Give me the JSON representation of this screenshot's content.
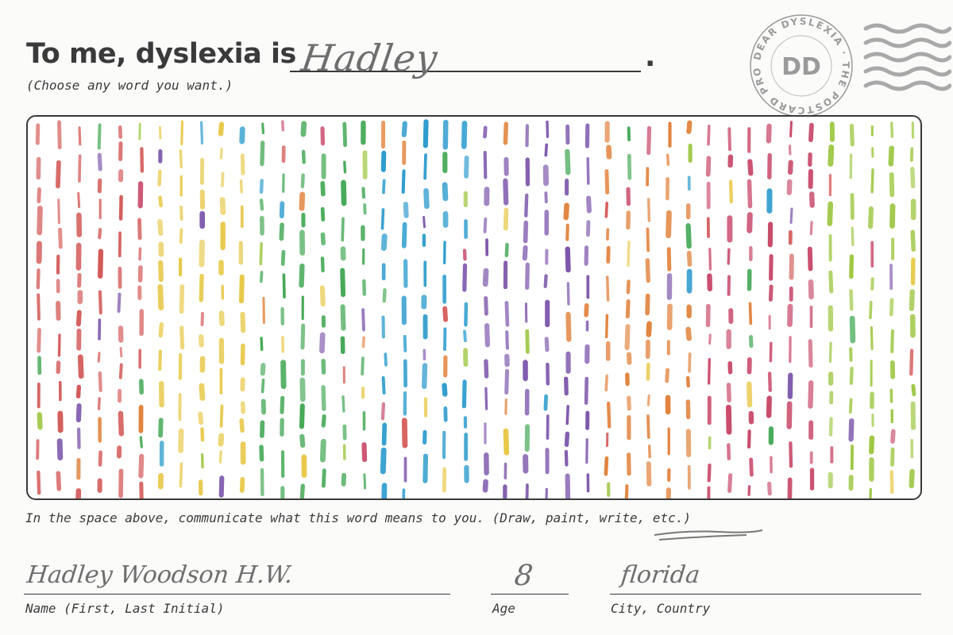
{
  "card": {
    "prompt": "To me, dyslexia is",
    "period": ".",
    "word": "Hadley",
    "hint": "(Choose any word you want.)",
    "instruction": "In the space above, communicate what this word means to you. (Draw, paint, write, etc.)"
  },
  "stamp": {
    "ring_text": "DEAR DYSLEXIA · THE POSTCARD PROJECT",
    "monogram": "DD"
  },
  "fields": {
    "name_label": "Name (First, Last Initial)",
    "name_value": "Hadley Woodson H.W.",
    "age_label": "Age",
    "age_value": "8",
    "city_label": "City, Country",
    "city_value": "florida"
  },
  "drawing": {
    "description_colors": [
      "#d0504f",
      "#e3c63a",
      "#3fa34d",
      "#2a97c9",
      "#7a4fa8",
      "#e07a3a"
    ]
  }
}
